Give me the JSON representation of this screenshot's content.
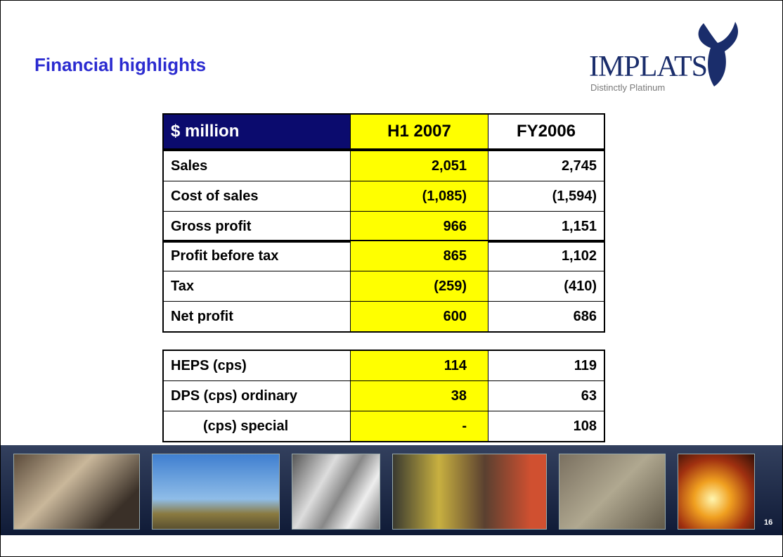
{
  "header": {
    "title": "Financial highlights",
    "logo": {
      "name": "IMPLATS",
      "tagline": "Distinctly Platinum"
    }
  },
  "table": {
    "columns": [
      "$ million",
      "H1 2007",
      "FY2006"
    ],
    "groups": [
      [
        [
          "Sales",
          "2,051",
          "2,745"
        ],
        [
          "Cost of sales",
          "(1,085)",
          "(1,594)"
        ],
        [
          "Gross profit",
          "966",
          "1,151"
        ]
      ],
      [
        [
          "Profit before tax",
          "865",
          "1,102"
        ],
        [
          "Tax",
          "(259)",
          "(410)"
        ],
        [
          "Net profit",
          "600",
          "686"
        ]
      ],
      [
        [
          "HEPS (cps)",
          "114",
          "119"
        ],
        [
          "DPS (cps) ordinary",
          "38",
          "63"
        ],
        [
          "(cps) special",
          "-",
          "108"
        ]
      ]
    ]
  },
  "footer": {
    "page_number": "16"
  }
}
